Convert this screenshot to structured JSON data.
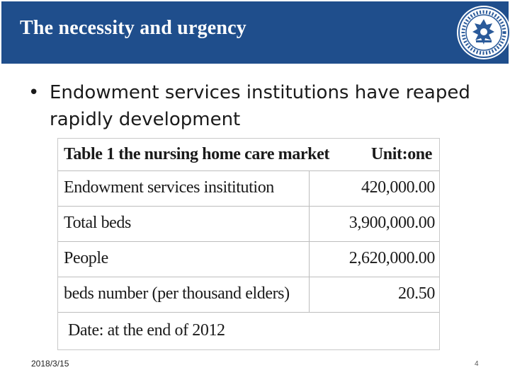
{
  "header": {
    "title": "The necessity and urgency",
    "colors": {
      "background": "#1f4e8c",
      "text": "#ffffff"
    },
    "logo_icon": "university-seal-icon"
  },
  "bullet": {
    "marker": "•",
    "text": "Endowment services institutions have reaped rapidly development"
  },
  "table": {
    "title": "Table 1  the nursing home care market",
    "unit": "Unit:one",
    "rows": [
      {
        "label": "Endowment services insititution",
        "value": "420,000.00"
      },
      {
        "label": "Total beds",
        "value": "3,900,000.00"
      },
      {
        "label": "People",
        "value": "2,620,000.00"
      },
      {
        "label": "beds number (per thousand elders)",
        "value": "20.50"
      }
    ],
    "note": "Date:  at the end of 2012"
  },
  "footer": {
    "date": "2018/3/15",
    "page": "4"
  }
}
